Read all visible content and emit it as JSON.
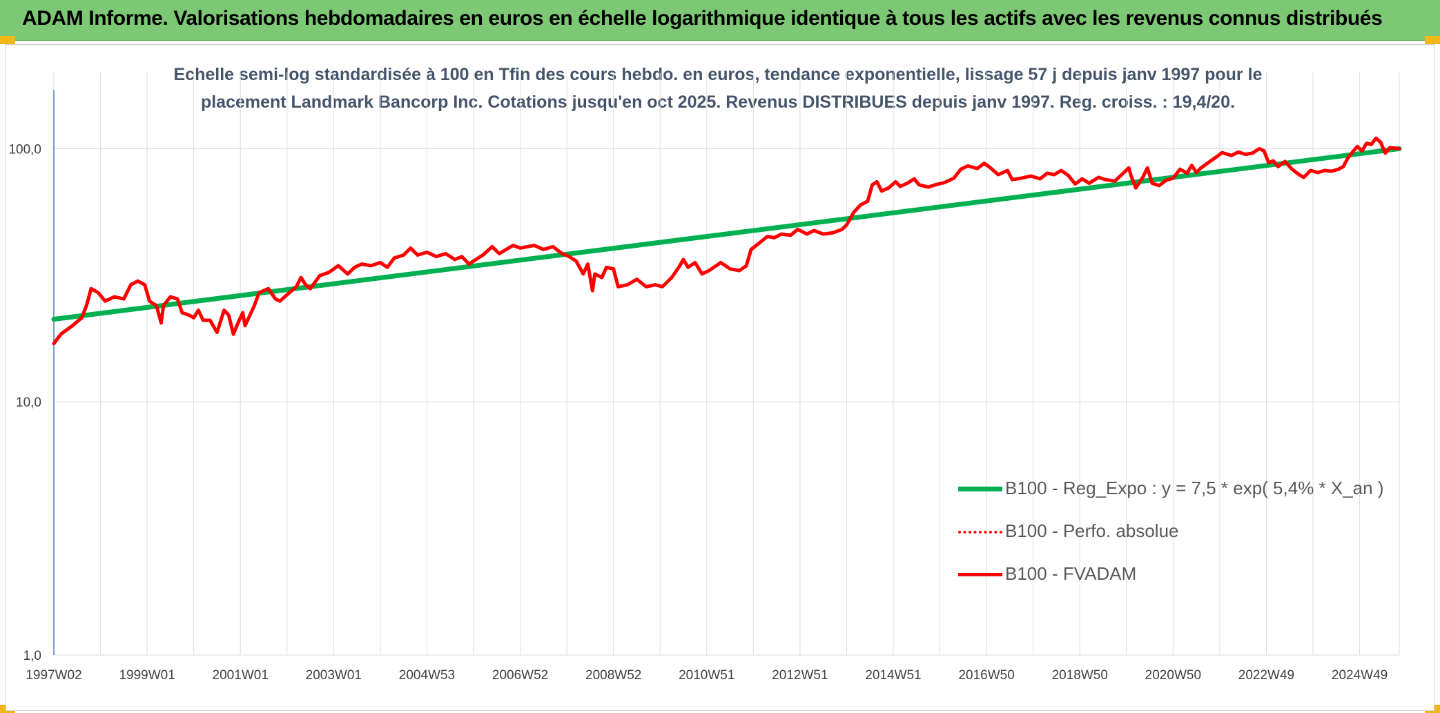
{
  "header": {
    "title": "ADAM Informe. Valorisations hebdomadaires en euros en échelle logarithmique identique à tous les actifs avec les revenus connus distribués"
  },
  "colors": {
    "header_bg": "#7dc874",
    "trend": "#00b050",
    "series": "#ff0000",
    "title": "#44546a",
    "accent": "#f2b81a"
  },
  "chart_data": {
    "type": "line",
    "title_line1": "Echelle semi-log standardisée à 100 en Tfin des cours hebdo. en euros, tendance exponentielle, lissage 57 j depuis janv 1997 pour le",
    "title_line2": "placement Landmark Bancorp Inc. Cotations jusqu'en oct 2025. Revenus DISTRIBUES depuis janv 1997. Reg. croiss. : 19,4/20.",
    "y_scale": "log",
    "ylim": [
      1,
      200
    ],
    "xlim": [
      1997.0,
      2025.85
    ],
    "y_ticks": [
      {
        "value": 1,
        "label": "1,0"
      },
      {
        "value": 10,
        "label": "10,0"
      },
      {
        "value": 100,
        "label": "100,0"
      }
    ],
    "x_ticks": [
      {
        "year": 1997.0,
        "label": "1997W02"
      },
      {
        "year": 1999.0,
        "label": "1999W01"
      },
      {
        "year": 2001.0,
        "label": "2001W01"
      },
      {
        "year": 2003.0,
        "label": "2003W01"
      },
      {
        "year": 2005.0,
        "label": "2004W53"
      },
      {
        "year": 2007.0,
        "label": "2006W52"
      },
      {
        "year": 2009.0,
        "label": "2008W52"
      },
      {
        "year": 2011.0,
        "label": "2010W51"
      },
      {
        "year": 2013.0,
        "label": "2012W51"
      },
      {
        "year": 2015.0,
        "label": "2014W51"
      },
      {
        "year": 2017.0,
        "label": "2016W50"
      },
      {
        "year": 2019.0,
        "label": "2018W50"
      },
      {
        "year": 2021.0,
        "label": "2020W50"
      },
      {
        "year": 2023.0,
        "label": "2022W49"
      },
      {
        "year": 2025.0,
        "label": "2024W49"
      }
    ],
    "minor_gridlines_x": [
      1998.0,
      2000.0,
      2002.0,
      2004.0,
      2006.0,
      2008.0,
      2010.0,
      2012.0,
      2014.0,
      2016.0,
      2018.0,
      2020.0,
      2022.0,
      2024.0,
      2025.85
    ],
    "legend_position": "bottom-right",
    "series": [
      {
        "name": "B100 - Reg_Expo : y = 7,5 * exp( 5,4% *  X_an )",
        "style": "solid-thick",
        "color": "#00b050",
        "points": [
          [
            1997.0,
            21.2
          ],
          [
            2025.85,
            100.0
          ]
        ]
      },
      {
        "name": "B100 - Perfo. absolue",
        "style": "dotted",
        "color": "#ff0000",
        "points": []
      },
      {
        "name": "B100 - FVADAM",
        "style": "solid",
        "color": "#ff0000",
        "points": [
          [
            1997.0,
            17.0
          ],
          [
            1997.15,
            18.5
          ],
          [
            1997.4,
            20.0
          ],
          [
            1997.6,
            21.5
          ],
          [
            1997.7,
            24.0
          ],
          [
            1997.8,
            28.0
          ],
          [
            1997.95,
            27.0
          ],
          [
            1998.1,
            25.0
          ],
          [
            1998.3,
            26.0
          ],
          [
            1998.5,
            25.5
          ],
          [
            1998.65,
            29.0
          ],
          [
            1998.8,
            30.0
          ],
          [
            1998.95,
            29.0
          ],
          [
            1999.05,
            25.0
          ],
          [
            1999.2,
            24.0
          ],
          [
            1999.3,
            20.5
          ],
          [
            1999.35,
            24.0
          ],
          [
            1999.5,
            26.0
          ],
          [
            1999.65,
            25.5
          ],
          [
            1999.75,
            22.5
          ],
          [
            1999.9,
            22.0
          ],
          [
            2000.0,
            21.5
          ],
          [
            2000.1,
            23.0
          ],
          [
            2000.2,
            21.0
          ],
          [
            2000.35,
            21.0
          ],
          [
            2000.5,
            18.8
          ],
          [
            2000.65,
            23.0
          ],
          [
            2000.75,
            22.0
          ],
          [
            2000.85,
            18.5
          ],
          [
            2000.95,
            20.5
          ],
          [
            2001.05,
            22.5
          ],
          [
            2001.1,
            20.0
          ],
          [
            2001.3,
            24.0
          ],
          [
            2001.4,
            27.0
          ],
          [
            2001.6,
            28.0
          ],
          [
            2001.75,
            25.5
          ],
          [
            2001.85,
            25.0
          ],
          [
            2002.0,
            26.5
          ],
          [
            2002.2,
            28.5
          ],
          [
            2002.3,
            31.0
          ],
          [
            2002.4,
            29.0
          ],
          [
            2002.5,
            28.0
          ],
          [
            2002.7,
            31.5
          ],
          [
            2002.9,
            32.5
          ],
          [
            2003.1,
            34.5
          ],
          [
            2003.3,
            32.0
          ],
          [
            2003.45,
            34.0
          ],
          [
            2003.6,
            35.0
          ],
          [
            2003.8,
            34.5
          ],
          [
            2004.0,
            35.5
          ],
          [
            2004.15,
            34.0
          ],
          [
            2004.3,
            37.0
          ],
          [
            2004.5,
            38.0
          ],
          [
            2004.65,
            40.5
          ],
          [
            2004.8,
            38.0
          ],
          [
            2005.0,
            39.0
          ],
          [
            2005.2,
            37.5
          ],
          [
            2005.4,
            38.5
          ],
          [
            2005.6,
            36.5
          ],
          [
            2005.75,
            37.5
          ],
          [
            2005.9,
            35.0
          ],
          [
            2006.0,
            36.0
          ],
          [
            2006.2,
            38.0
          ],
          [
            2006.4,
            41.0
          ],
          [
            2006.55,
            38.5
          ],
          [
            2006.7,
            40.0
          ],
          [
            2006.85,
            41.5
          ],
          [
            2007.0,
            40.5
          ],
          [
            2007.3,
            41.5
          ],
          [
            2007.5,
            40.0
          ],
          [
            2007.7,
            41.0
          ],
          [
            2007.9,
            38.5
          ],
          [
            2008.05,
            37.5
          ],
          [
            2008.2,
            36.0
          ],
          [
            2008.35,
            32.0
          ],
          [
            2008.45,
            35.0
          ],
          [
            2008.55,
            27.5
          ],
          [
            2008.6,
            32.0
          ],
          [
            2008.75,
            31.0
          ],
          [
            2008.85,
            34.0
          ],
          [
            2009.0,
            33.5
          ],
          [
            2009.1,
            28.5
          ],
          [
            2009.3,
            29.0
          ],
          [
            2009.5,
            30.5
          ],
          [
            2009.7,
            28.5
          ],
          [
            2009.9,
            29.0
          ],
          [
            2010.05,
            28.5
          ],
          [
            2010.25,
            31.0
          ],
          [
            2010.4,
            34.0
          ],
          [
            2010.5,
            36.5
          ],
          [
            2010.6,
            34.0
          ],
          [
            2010.75,
            35.5
          ],
          [
            2010.9,
            32.0
          ],
          [
            2011.05,
            33.0
          ],
          [
            2011.3,
            35.5
          ],
          [
            2011.5,
            33.5
          ],
          [
            2011.7,
            33.0
          ],
          [
            2011.85,
            34.5
          ],
          [
            2011.95,
            40.0
          ],
          [
            2012.1,
            42.0
          ],
          [
            2012.3,
            45.0
          ],
          [
            2012.45,
            44.5
          ],
          [
            2012.6,
            46.0
          ],
          [
            2012.8,
            45.5
          ],
          [
            2012.95,
            48.0
          ],
          [
            2013.15,
            46.0
          ],
          [
            2013.3,
            47.5
          ],
          [
            2013.5,
            46.0
          ],
          [
            2013.7,
            46.5
          ],
          [
            2013.9,
            48.0
          ],
          [
            2014.0,
            50.0
          ],
          [
            2014.15,
            56.0
          ],
          [
            2014.3,
            60.0
          ],
          [
            2014.45,
            62.0
          ],
          [
            2014.55,
            72.0
          ],
          [
            2014.65,
            74.0
          ],
          [
            2014.75,
            68.0
          ],
          [
            2014.9,
            70.0
          ],
          [
            2015.05,
            74.0
          ],
          [
            2015.15,
            71.0
          ],
          [
            2015.3,
            73.0
          ],
          [
            2015.45,
            76.0
          ],
          [
            2015.55,
            72.0
          ],
          [
            2015.75,
            70.5
          ],
          [
            2015.9,
            72.0
          ],
          [
            2016.1,
            73.5
          ],
          [
            2016.3,
            76.5
          ],
          [
            2016.45,
            83.0
          ],
          [
            2016.6,
            85.5
          ],
          [
            2016.8,
            83.5
          ],
          [
            2016.95,
            87.5
          ],
          [
            2017.05,
            85.0
          ],
          [
            2017.25,
            79.0
          ],
          [
            2017.45,
            82.0
          ],
          [
            2017.55,
            75.5
          ],
          [
            2017.75,
            76.5
          ],
          [
            2017.95,
            78.0
          ],
          [
            2018.15,
            76.0
          ],
          [
            2018.3,
            80.0
          ],
          [
            2018.45,
            79.0
          ],
          [
            2018.6,
            82.0
          ],
          [
            2018.75,
            78.5
          ],
          [
            2018.9,
            72.5
          ],
          [
            2019.05,
            76.0
          ],
          [
            2019.2,
            73.0
          ],
          [
            2019.4,
            77.0
          ],
          [
            2019.55,
            75.5
          ],
          [
            2019.75,
            74.5
          ],
          [
            2019.9,
            79.0
          ],
          [
            2020.05,
            84.0
          ],
          [
            2020.1,
            78.0
          ],
          [
            2020.2,
            70.0
          ],
          [
            2020.35,
            77.0
          ],
          [
            2020.45,
            84.0
          ],
          [
            2020.55,
            73.0
          ],
          [
            2020.7,
            71.5
          ],
          [
            2020.85,
            75.0
          ],
          [
            2021.0,
            76.5
          ],
          [
            2021.15,
            83.0
          ],
          [
            2021.3,
            80.0
          ],
          [
            2021.4,
            86.0
          ],
          [
            2021.5,
            80.5
          ],
          [
            2021.6,
            84.0
          ],
          [
            2021.75,
            88.0
          ],
          [
            2021.9,
            92.0
          ],
          [
            2022.05,
            96.5
          ],
          [
            2022.25,
            94.0
          ],
          [
            2022.4,
            97.0
          ],
          [
            2022.55,
            95.0
          ],
          [
            2022.7,
            96.0
          ],
          [
            2022.85,
            100.0
          ],
          [
            2022.95,
            98.0
          ],
          [
            2023.05,
            88.0
          ],
          [
            2023.15,
            89.5
          ],
          [
            2023.25,
            85.0
          ],
          [
            2023.4,
            89.0
          ],
          [
            2023.55,
            83.0
          ],
          [
            2023.7,
            79.0
          ],
          [
            2023.8,
            77.0
          ],
          [
            2023.95,
            82.0
          ],
          [
            2024.1,
            80.5
          ],
          [
            2024.25,
            82.0
          ],
          [
            2024.4,
            81.5
          ],
          [
            2024.55,
            83.0
          ],
          [
            2024.65,
            85.0
          ],
          [
            2024.75,
            92.0
          ],
          [
            2024.85,
            97.0
          ],
          [
            2024.95,
            102.0
          ],
          [
            2025.05,
            98.0
          ],
          [
            2025.15,
            105.0
          ],
          [
            2025.25,
            104.0
          ],
          [
            2025.35,
            110.0
          ],
          [
            2025.45,
            106.0
          ],
          [
            2025.55,
            96.0
          ],
          [
            2025.65,
            101.0
          ],
          [
            2025.85,
            100.0
          ]
        ]
      }
    ]
  }
}
